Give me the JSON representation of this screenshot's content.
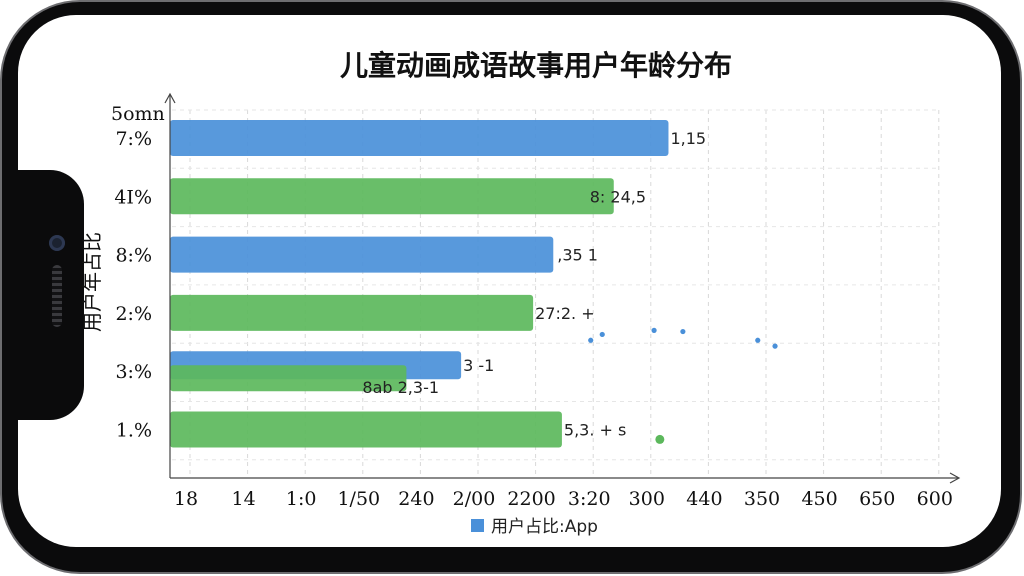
{
  "chart_data": {
    "type": "bar",
    "orientation": "horizontal",
    "title": "儿童动画成语故事用户年龄分布",
    "ylabel": "用户年占比",
    "y_top_label": "5omn",
    "categories": [
      "7:%",
      "4I%",
      "8:%",
      "2:%",
      "3:%",
      "1.%"
    ],
    "x_tick_labels": [
      "18",
      "14",
      "1:0",
      "1/50",
      "240",
      "2/00",
      "2200",
      "3:20",
      "300",
      "440",
      "350",
      "450",
      "650",
      "600"
    ],
    "xlim": [
      0,
      13
    ],
    "series": [
      {
        "name": "用户占比:App",
        "color": "#4a90d9",
        "values": [
          8.55,
          null,
          6.55,
          null,
          4.95,
          null
        ]
      },
      {
        "name": "",
        "color": "#5cb85c",
        "values": [
          null,
          7.6,
          null,
          6.2,
          4.0,
          6.7
        ]
      }
    ],
    "data_labels": [
      "1,15",
      "8: 24,5",
      ",35 1",
      "27:2.  +",
      "3 -1",
      "8ab 2,3-1",
      "5,3.  +   s"
    ],
    "scatter_points": [
      {
        "x": 7.2,
        "y": 3.95,
        "color": "#4a90d9"
      },
      {
        "x": 7.4,
        "y": 3.85,
        "color": "#4a90d9"
      },
      {
        "x": 8.3,
        "y": 3.78,
        "color": "#4a90d9"
      },
      {
        "x": 8.8,
        "y": 3.8,
        "color": "#4a90d9"
      },
      {
        "x": 10.1,
        "y": 3.95,
        "color": "#4a90d9"
      },
      {
        "x": 10.4,
        "y": 4.05,
        "color": "#4a90d9"
      },
      {
        "x": 8.4,
        "y": 5.65,
        "color": "#5cb85c"
      }
    ],
    "legend": {
      "position": "bottom-center",
      "label": "用户占比:App",
      "color": "#4a90d9"
    },
    "grid": true
  }
}
